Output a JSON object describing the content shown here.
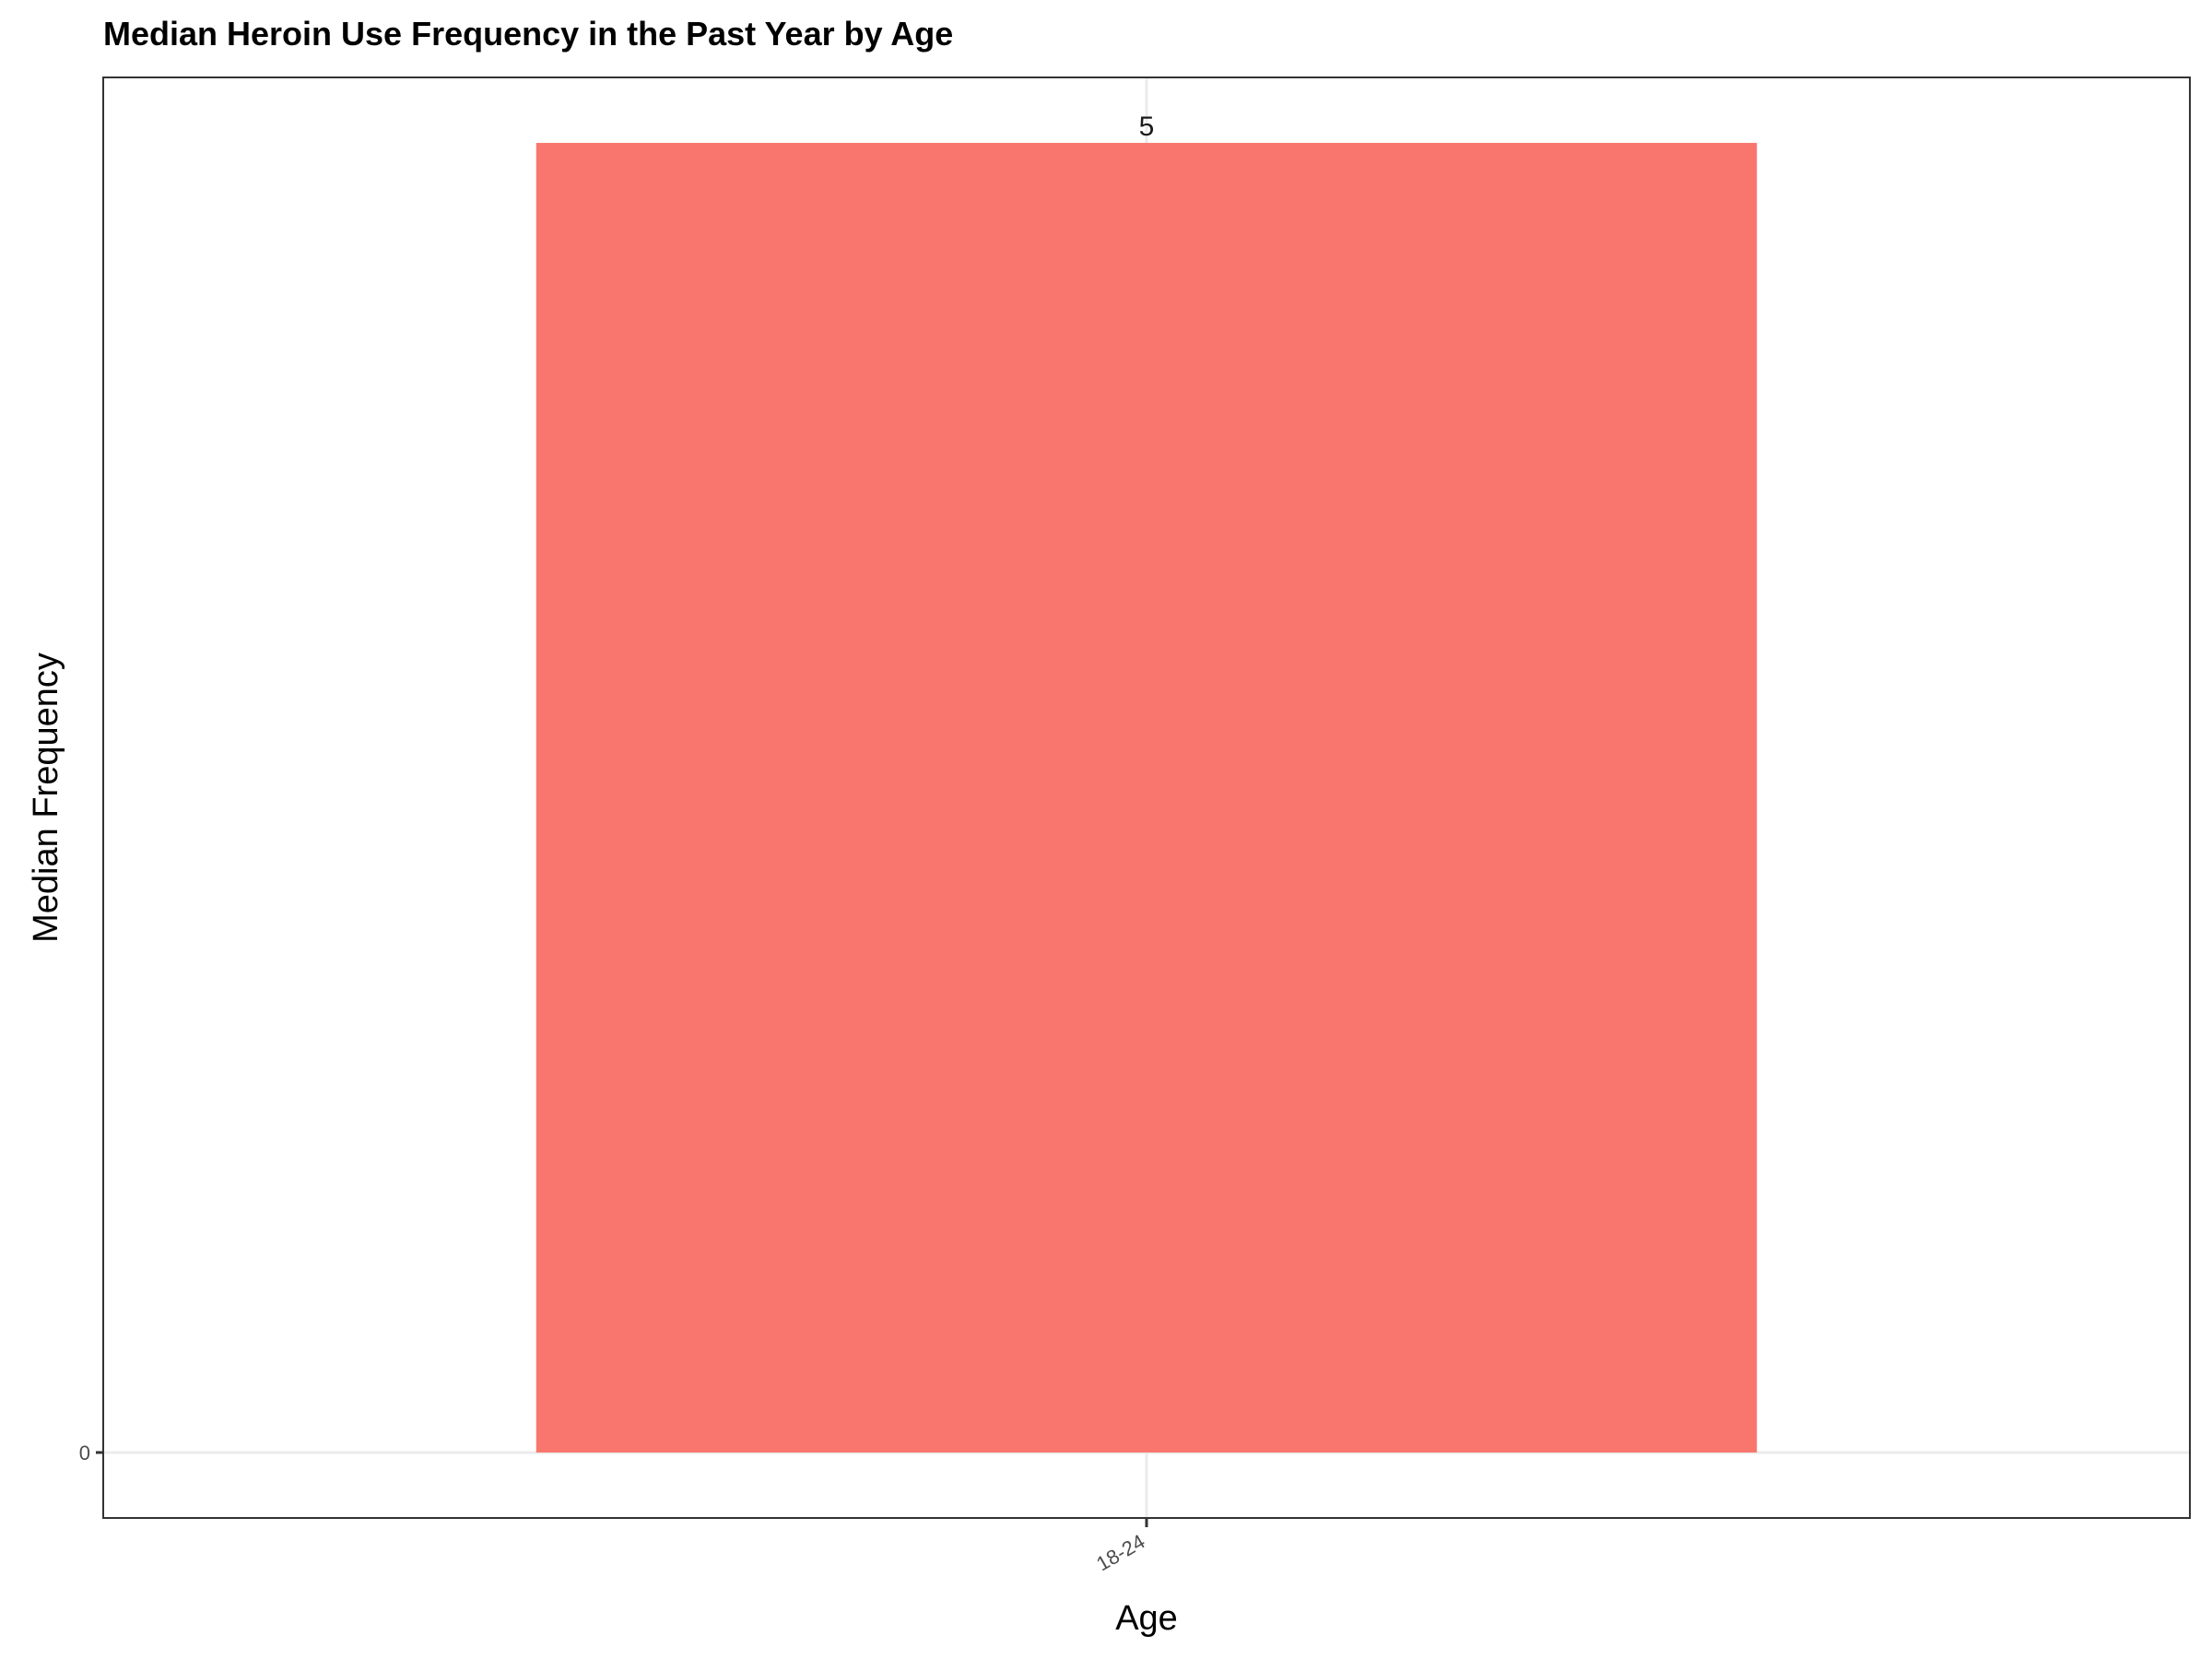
{
  "chart_data": {
    "type": "bar",
    "title": "Median Heroin Use Frequency in the Past Year by Age",
    "xlabel": "Age",
    "ylabel": "Median Frequency",
    "categories": [
      "18-24"
    ],
    "values": [
      5
    ],
    "data_labels": [
      "5"
    ],
    "y_ticks": [
      {
        "value": 0,
        "label": "0"
      }
    ],
    "ylim": [
      -0.25,
      5.25
    ],
    "grid": true,
    "legend": "none",
    "bar_color": "#F8766D"
  }
}
